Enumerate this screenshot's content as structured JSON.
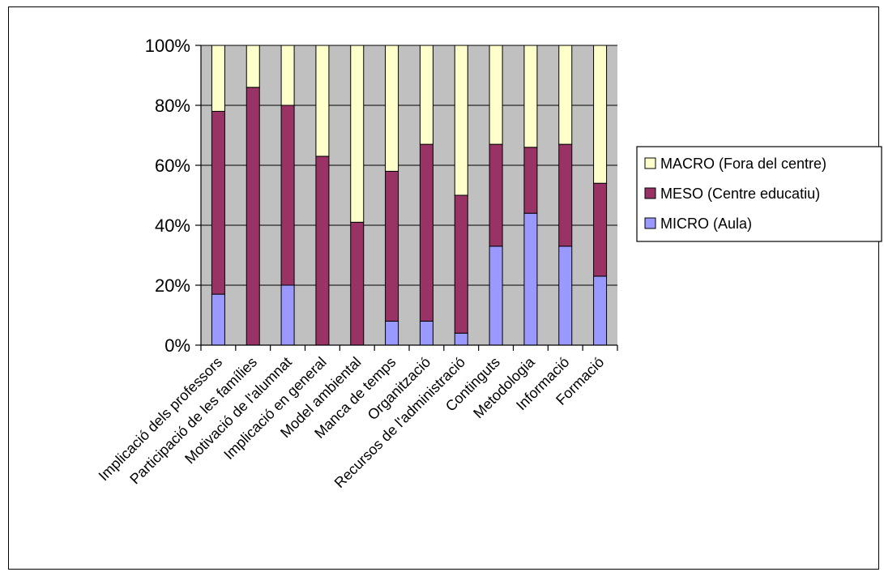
{
  "chart_data": {
    "type": "bar",
    "stacked": true,
    "percent": true,
    "categories": [
      "Implicació dels professors",
      "Participació de les famílies",
      "Motivació de l'alumnat",
      "Implicació en general",
      "Model ambiental",
      "Manca de temps",
      "Organització",
      "Recursos de l'administració",
      "Continguts",
      "Metodologia",
      "Informació",
      "Formació"
    ],
    "series": [
      {
        "name": "MICRO (Aula)",
        "color": "#9999ff",
        "values": [
          17,
          0,
          20,
          0,
          0,
          8,
          8,
          4,
          33,
          44,
          33,
          23
        ]
      },
      {
        "name": "MESO (Centre educatiu)",
        "color": "#993366",
        "values": [
          61,
          86,
          60,
          63,
          41,
          50,
          59,
          46,
          34,
          22,
          34,
          31
        ]
      },
      {
        "name": "MACRO (Fora del centre)",
        "color": "#ffffcc",
        "values": [
          22,
          14,
          20,
          37,
          59,
          42,
          33,
          50,
          33,
          34,
          33,
          46
        ]
      }
    ],
    "yticks": [
      "0%",
      "20%",
      "40%",
      "60%",
      "80%",
      "100%"
    ],
    "ylim": [
      0,
      100
    ],
    "plot_background": "#c0c0c0",
    "grid": true,
    "legend_position": "right"
  }
}
